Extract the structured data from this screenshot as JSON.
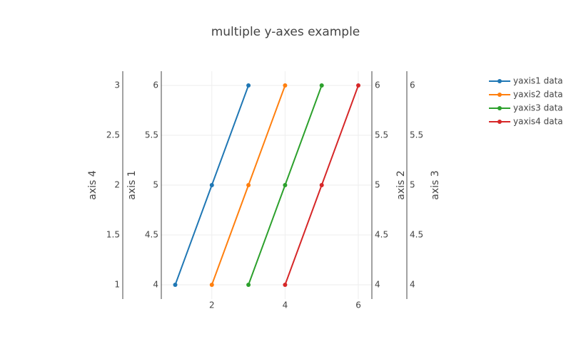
{
  "chart_data": {
    "type": "line",
    "title": "multiple y-axes example",
    "xlim": [
      0.62,
      6.37
    ],
    "xticks": [
      2,
      4,
      6
    ],
    "grid": true,
    "ylabel": "axis 1",
    "ylim": [
      3.857,
      6.143
    ],
    "yticks": [
      4,
      4.5,
      5,
      5.5,
      6
    ],
    "y2label": "axis 2",
    "y2lim": [
      3.857,
      6.143
    ],
    "y2ticks": [
      4,
      4.5,
      5,
      5.5,
      6
    ],
    "y3label": "axis 3",
    "y3lim": [
      3.857,
      6.143
    ],
    "y3ticks": [
      4,
      4.5,
      5,
      5.5,
      6
    ],
    "y4label": "axis 4",
    "y4lim": [
      0.857,
      3.143
    ],
    "y4ticks": [
      1,
      1.5,
      2,
      2.5,
      3
    ],
    "series": [
      {
        "name": "yaxis1 data",
        "color": "#1f77b4",
        "x": [
          1,
          2,
          3
        ],
        "values": [
          4,
          5,
          6
        ],
        "axis": "y"
      },
      {
        "name": "yaxis2 data",
        "color": "#ff7f0e",
        "x": [
          2,
          3,
          4
        ],
        "values": [
          4,
          5,
          6
        ],
        "axis": "y2"
      },
      {
        "name": "yaxis3 data",
        "color": "#2ca02c",
        "x": [
          3,
          4,
          5
        ],
        "values": [
          4,
          5,
          6
        ],
        "axis": "y3"
      },
      {
        "name": "yaxis4 data",
        "color": "#d62728",
        "x": [
          4,
          5,
          6
        ],
        "values": [
          1,
          2,
          3
        ],
        "axis": "y4"
      }
    ]
  }
}
